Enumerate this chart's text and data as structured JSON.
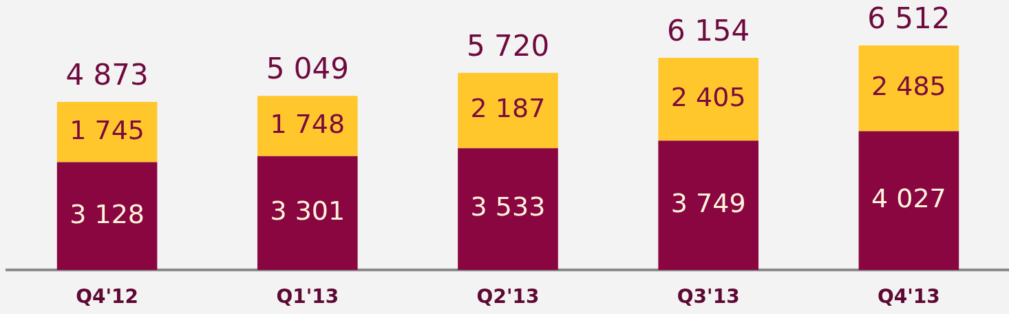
{
  "chart_data": {
    "type": "bar",
    "stacked": true,
    "categories": [
      "Q4'12",
      "Q1'13",
      "Q2'13",
      "Q3'13",
      "Q4'13"
    ],
    "series": [
      {
        "color": "#890640",
        "values": [
          3128,
          3301,
          3533,
          3749,
          4027
        ],
        "value_labels": [
          "3 128",
          "3 301",
          "3 533",
          "3 749",
          "4 027"
        ]
      },
      {
        "color": "#ffc72c",
        "values": [
          1745,
          1748,
          2187,
          2405,
          2485
        ],
        "value_labels": [
          "1 745",
          "1 748",
          "2 187",
          "2 405",
          "2 485"
        ]
      }
    ],
    "totals": [
      "4 873",
      "5 049",
      "5 720",
      "6 154",
      "6 512"
    ],
    "tick_labels": "x"
  }
}
